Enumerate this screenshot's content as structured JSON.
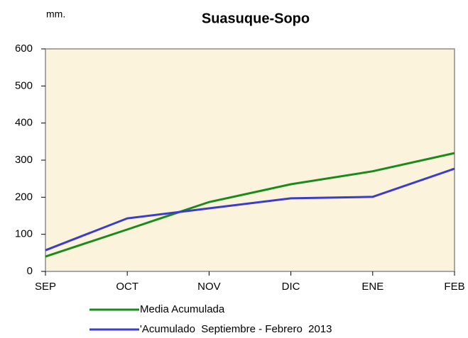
{
  "chart_data": {
    "type": "line",
    "title": "Suasuque-Sopo",
    "y_label": "mm.",
    "categories": [
      "SEP",
      "OCT",
      "NOV",
      "DIC",
      "ENE",
      "FEB"
    ],
    "series": [
      {
        "name": "Media Acumulada",
        "color": "#1a8a1a",
        "values": [
          40,
          113,
          187,
          235,
          270,
          319
        ]
      },
      {
        "name": "'Acumulado  Septiembre - Febrero  2013",
        "color": "#3b3bcc",
        "values": [
          57,
          143,
          170,
          197,
          201,
          277
        ]
      }
    ],
    "ylim": [
      0,
      600
    ],
    "yticks": [
      0,
      100,
      200,
      300,
      400,
      500,
      600
    ],
    "grid": false,
    "legend": "bottom"
  }
}
